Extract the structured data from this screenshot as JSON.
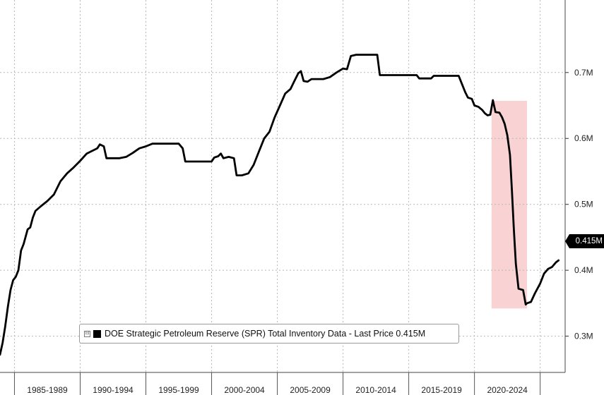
{
  "chart_data": {
    "type": "line",
    "title": "",
    "xlabel": "",
    "ylabel": "",
    "ylim": [
      0.245,
      0.81
    ],
    "xlim": [
      1983.9,
      2026.9
    ],
    "y_ticks": [
      0.3,
      0.4,
      0.5,
      0.6,
      0.7
    ],
    "y_tick_labels": [
      "0.3M",
      "0.4M",
      "0.5M",
      "0.6M",
      "0.7M"
    ],
    "x_categories": [
      "1985-1989",
      "1990-1994",
      "1995-1999",
      "2000-2004",
      "2005-2009",
      "2010-2014",
      "2015-2019",
      "2020-2024"
    ],
    "grid": true,
    "legend_position": "bottom-left",
    "series": [
      {
        "name": "DOE Strategic Petroleum Reserve (SPR) Total Inventory Data - Last Price 0.415M",
        "color": "#000000",
        "points": [
          [
            1983.9,
            0.272
          ],
          [
            1984.1,
            0.29
          ],
          [
            1984.3,
            0.315
          ],
          [
            1984.5,
            0.345
          ],
          [
            1984.7,
            0.37
          ],
          [
            1984.9,
            0.385
          ],
          [
            1985.1,
            0.39
          ],
          [
            1985.3,
            0.4
          ],
          [
            1985.5,
            0.43
          ],
          [
            1985.7,
            0.44
          ],
          [
            1986.0,
            0.462
          ],
          [
            1986.2,
            0.465
          ],
          [
            1986.4,
            0.48
          ],
          [
            1986.6,
            0.49
          ],
          [
            1987.0,
            0.497
          ],
          [
            1987.5,
            0.505
          ],
          [
            1988.0,
            0.515
          ],
          [
            1988.5,
            0.535
          ],
          [
            1989.0,
            0.547
          ],
          [
            1989.5,
            0.556
          ],
          [
            1990.0,
            0.566
          ],
          [
            1990.5,
            0.577
          ],
          [
            1991.0,
            0.582
          ],
          [
            1991.3,
            0.585
          ],
          [
            1991.5,
            0.591
          ],
          [
            1991.8,
            0.588
          ],
          [
            1992.0,
            0.57
          ],
          [
            1993.0,
            0.57
          ],
          [
            1993.5,
            0.572
          ],
          [
            1994.0,
            0.578
          ],
          [
            1994.5,
            0.585
          ],
          [
            1995.0,
            0.588
          ],
          [
            1995.5,
            0.592
          ],
          [
            1997.5,
            0.592
          ],
          [
            1997.8,
            0.585
          ],
          [
            1998.0,
            0.565
          ],
          [
            2000.0,
            0.565
          ],
          [
            2000.2,
            0.571
          ],
          [
            2000.5,
            0.573
          ],
          [
            2000.7,
            0.577
          ],
          [
            2000.9,
            0.57
          ],
          [
            2001.3,
            0.572
          ],
          [
            2001.7,
            0.57
          ],
          [
            2001.9,
            0.544
          ],
          [
            2002.3,
            0.544
          ],
          [
            2002.8,
            0.547
          ],
          [
            2003.2,
            0.56
          ],
          [
            2003.6,
            0.58
          ],
          [
            2004.0,
            0.6
          ],
          [
            2004.4,
            0.61
          ],
          [
            2004.8,
            0.632
          ],
          [
            2005.2,
            0.65
          ],
          [
            2005.6,
            0.668
          ],
          [
            2006.0,
            0.675
          ],
          [
            2006.3,
            0.687
          ],
          [
            2006.6,
            0.699
          ],
          [
            2006.8,
            0.702
          ],
          [
            2007.0,
            0.687
          ],
          [
            2007.3,
            0.686
          ],
          [
            2007.6,
            0.69
          ],
          [
            2008.5,
            0.69
          ],
          [
            2009.0,
            0.693
          ],
          [
            2009.5,
            0.7
          ],
          [
            2010.0,
            0.706
          ],
          [
            2010.3,
            0.705
          ],
          [
            2010.6,
            0.725
          ],
          [
            2011.0,
            0.727
          ],
          [
            2012.6,
            0.727
          ],
          [
            2012.8,
            0.696
          ],
          [
            2014.5,
            0.696
          ],
          [
            2015.6,
            0.696
          ],
          [
            2015.8,
            0.691
          ],
          [
            2016.7,
            0.691
          ],
          [
            2016.9,
            0.695
          ],
          [
            2018.8,
            0.695
          ],
          [
            2019.0,
            0.685
          ],
          [
            2019.3,
            0.67
          ],
          [
            2019.5,
            0.662
          ],
          [
            2019.8,
            0.66
          ],
          [
            2020.0,
            0.65
          ],
          [
            2020.3,
            0.648
          ],
          [
            2020.6,
            0.643
          ],
          [
            2020.8,
            0.638
          ],
          [
            2021.0,
            0.635
          ],
          [
            2021.2,
            0.636
          ],
          [
            2021.4,
            0.658
          ],
          [
            2021.6,
            0.64
          ],
          [
            2021.9,
            0.639
          ],
          [
            2022.1,
            0.632
          ],
          [
            2022.3,
            0.622
          ],
          [
            2022.5,
            0.605
          ],
          [
            2022.7,
            0.575
          ],
          [
            2022.85,
            0.52
          ],
          [
            2023.0,
            0.462
          ],
          [
            2023.15,
            0.41
          ],
          [
            2023.35,
            0.372
          ],
          [
            2023.7,
            0.37
          ],
          [
            2023.9,
            0.348
          ],
          [
            2024.0,
            0.35
          ],
          [
            2024.3,
            0.352
          ],
          [
            2024.6,
            0.365
          ],
          [
            2025.0,
            0.38
          ],
          [
            2025.3,
            0.395
          ],
          [
            2025.6,
            0.402
          ],
          [
            2025.9,
            0.405
          ],
          [
            2026.2,
            0.412
          ],
          [
            2026.4,
            0.415
          ]
        ]
      }
    ],
    "highlight": {
      "x0": 2021.3,
      "x1": 2024.0,
      "y0": 0.342,
      "y1": 0.657,
      "color": "#f9d3d3"
    },
    "last_value_label": "0.415M",
    "legend": {
      "toggle": "⊟",
      "label": "DOE Strategic Petroleum Reserve (SPR) Total Inventory Data - Last Price 0.415M"
    }
  }
}
